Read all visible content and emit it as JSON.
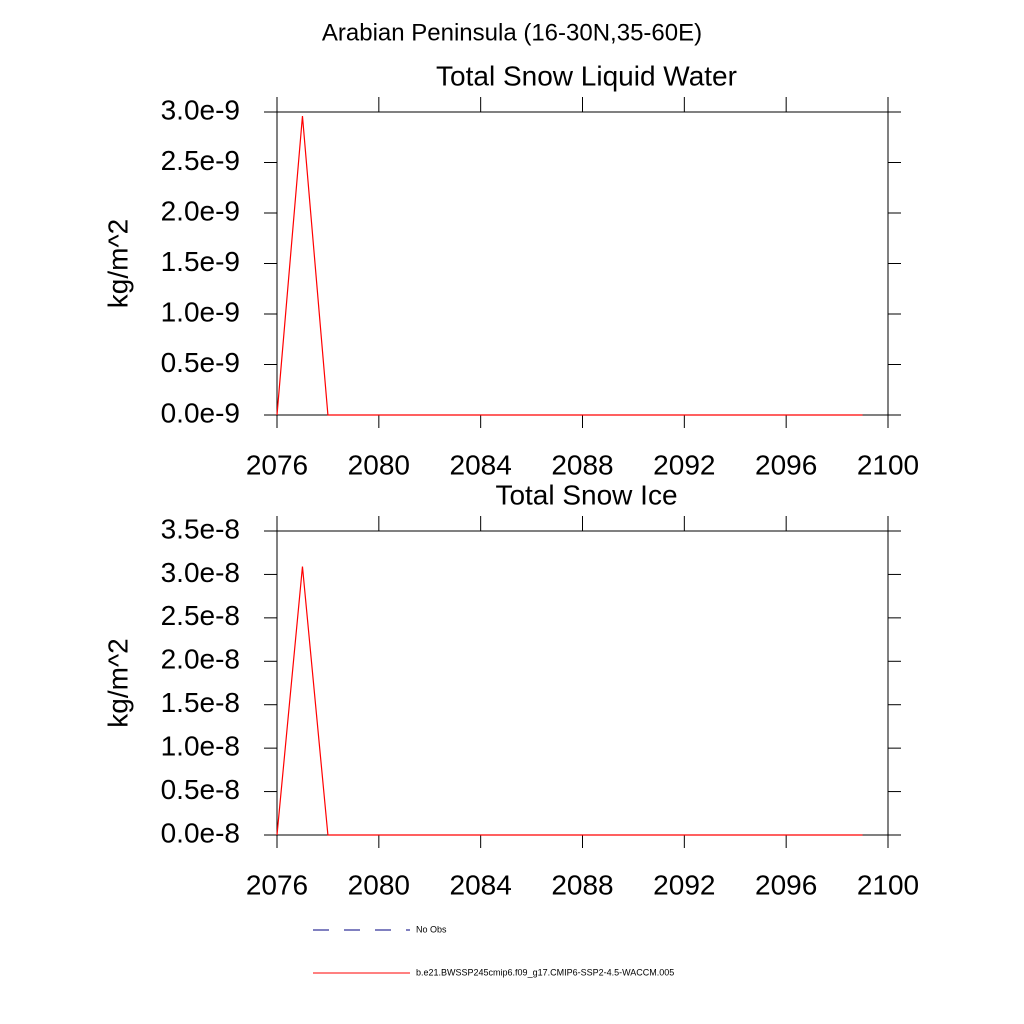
{
  "suptitle": "Arabian Peninsula (16-30N,35-60E)",
  "chart_data": [
    {
      "type": "line",
      "title": "Total Snow Liquid Water",
      "ylabel": "kg/m^2",
      "x": [
        2076,
        2077,
        2078,
        2079,
        2080,
        2081,
        2082,
        2083,
        2084,
        2085,
        2086,
        2087,
        2088,
        2089,
        2090,
        2091,
        2092,
        2093,
        2094,
        2095,
        2096,
        2097,
        2098,
        2099
      ],
      "series": [
        {
          "color": "#ff0000",
          "values": [
            0,
            2.96e-09,
            0,
            0,
            0,
            0,
            0,
            0,
            0,
            0,
            0,
            0,
            0,
            0,
            0,
            0,
            0,
            0,
            0,
            0,
            0,
            0,
            0,
            0
          ]
        }
      ],
      "xlim": [
        2076,
        2100
      ],
      "xticks": [
        2076,
        2080,
        2084,
        2088,
        2092,
        2096,
        2100
      ],
      "ylim": [
        0,
        3e-09
      ],
      "yticks": [
        {
          "value": 0,
          "label": "0.0e-9"
        },
        {
          "value": 5e-10,
          "label": "0.5e-9"
        },
        {
          "value": 1e-09,
          "label": "1.0e-9"
        },
        {
          "value": 1.5e-09,
          "label": "1.5e-9"
        },
        {
          "value": 2e-09,
          "label": "2.0e-9"
        },
        {
          "value": 2.5e-09,
          "label": "2.5e-9"
        },
        {
          "value": 3e-09,
          "label": "3.0e-9"
        }
      ]
    },
    {
      "type": "line",
      "title": "Total Snow Ice",
      "ylabel": "kg/m^2",
      "x": [
        2076,
        2077,
        2078,
        2079,
        2080,
        2081,
        2082,
        2083,
        2084,
        2085,
        2086,
        2087,
        2088,
        2089,
        2090,
        2091,
        2092,
        2093,
        2094,
        2095,
        2096,
        2097,
        2098,
        2099
      ],
      "series": [
        {
          "color": "#ff0000",
          "values": [
            0,
            3.09e-08,
            0,
            0,
            0,
            0,
            0,
            0,
            0,
            0,
            0,
            0,
            0,
            0,
            0,
            0,
            0,
            0,
            0,
            0,
            0,
            0,
            0,
            0
          ]
        }
      ],
      "xlim": [
        2076,
        2100
      ],
      "xticks": [
        2076,
        2080,
        2084,
        2088,
        2092,
        2096,
        2100
      ],
      "ylim": [
        0,
        3.5e-08
      ],
      "yticks": [
        {
          "value": 0,
          "label": "0.0e-8"
        },
        {
          "value": 5e-09,
          "label": "0.5e-8"
        },
        {
          "value": 1e-08,
          "label": "1.0e-8"
        },
        {
          "value": 1.5e-08,
          "label": "1.5e-8"
        },
        {
          "value": 2e-08,
          "label": "2.0e-8"
        },
        {
          "value": 2.5e-08,
          "label": "2.5e-8"
        },
        {
          "value": 3e-08,
          "label": "3.0e-8"
        },
        {
          "value": 3.5e-08,
          "label": "3.5e-8"
        }
      ]
    }
  ],
  "legend": [
    {
      "name": "No Obs",
      "color": "#000080",
      "dashed": true
    },
    {
      "name": "b.e21.BWSSP245cmip6.f09_g17.CMIP6-SSP2-4.5-WACCM.005",
      "color": "#ff0000",
      "dashed": false
    }
  ]
}
